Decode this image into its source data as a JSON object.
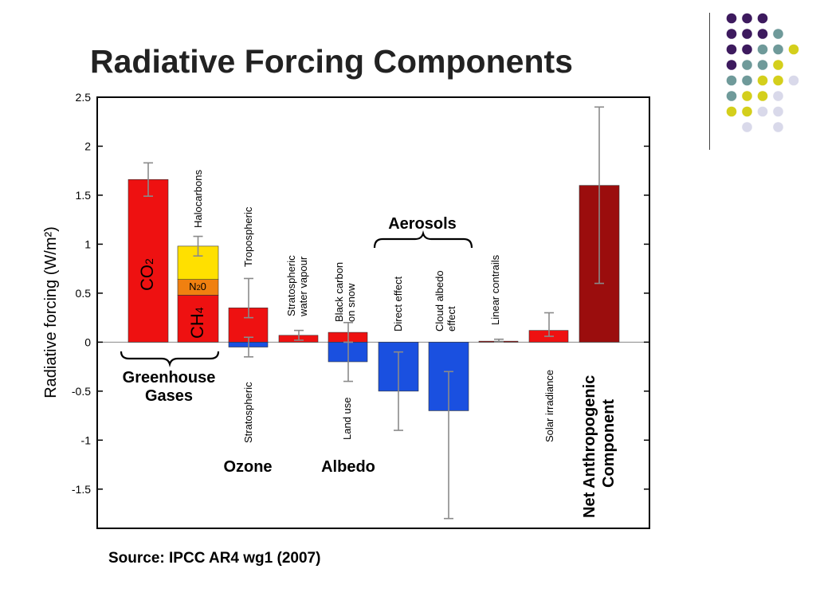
{
  "slide": {
    "title": "Radiative Forcing Components",
    "source": "Source: IPCC AR4 wg1 (2007)"
  },
  "decoration": {
    "dot_colors": {
      "purple": "#3d1a5e",
      "teal": "#6f9a9a",
      "yellow": "#d4cf1c",
      "lavender": "#d9d9ea"
    }
  },
  "chart_data": {
    "type": "bar",
    "ylabel": "Radiative forcing (W/m²)",
    "ylim": [
      -1.9,
      2.5
    ],
    "yticks": [
      "2.5",
      "2",
      "1.5",
      "1",
      "0.5",
      "0",
      "-0.5",
      "-1",
      "-1.5"
    ],
    "ytick_values": [
      2.5,
      2,
      1.5,
      1,
      0.5,
      0,
      -0.5,
      -1,
      -1.5
    ],
    "colors": {
      "positive": "#ee1111",
      "negative": "#1a50e0",
      "halocarbons": "#ffe000",
      "n2o": "#f08010",
      "net": "#9b0d0d",
      "errorbar": "#8a8a8a"
    },
    "components": [
      {
        "category": "CO2",
        "label": "CO₂",
        "value": 1.66,
        "err_low": 1.49,
        "err_high": 1.83
      },
      {
        "category": "CH4",
        "label": "CH₄",
        "value": 0.48
      },
      {
        "category": "N2O",
        "label": "N₂O",
        "value": 0.16
      },
      {
        "category": "Halocarbons",
        "label": "Halocarbons",
        "value": 0.34,
        "err_low": 0.88,
        "err_high": 1.08
      },
      {
        "category": "Ozone tropospheric",
        "label": "Tropospheric",
        "value": 0.35,
        "err_low": 0.25,
        "err_high": 0.65
      },
      {
        "category": "Ozone stratospheric",
        "label": "Stratospheric",
        "value": -0.05,
        "err_low": -0.15,
        "err_high": 0.05
      },
      {
        "category": "Stratospheric water vapour",
        "label": "Stratospheric water vapour",
        "value": 0.07,
        "err_low": 0.02,
        "err_high": 0.12
      },
      {
        "category": "Black carbon on snow",
        "label": "Black carbon on snow",
        "value": 0.1,
        "err_low": 0.0,
        "err_high": 0.2
      },
      {
        "category": "Land use",
        "label": "Land use",
        "value": -0.2,
        "err_low": -0.4,
        "err_high": 0.0
      },
      {
        "category": "Aerosol direct effect",
        "label": "Direct effect",
        "value": -0.5,
        "err_low": -0.9,
        "err_high": -0.1
      },
      {
        "category": "Aerosol cloud albedo effect",
        "label": "Cloud albedo effect",
        "value": -0.7,
        "err_low": -1.8,
        "err_high": -0.3
      },
      {
        "category": "Linear contrails",
        "label": "Linear contrails",
        "value": 0.01,
        "err_low": 0.003,
        "err_high": 0.03
      },
      {
        "category": "Solar irradiance",
        "label": "Solar irradiance",
        "value": 0.12,
        "err_low": 0.06,
        "err_high": 0.3
      },
      {
        "category": "Net anthropogenic",
        "label": "Net Anthropogenic Component",
        "value": 1.6,
        "err_low": 0.6,
        "err_high": 2.4
      }
    ],
    "group_labels": {
      "greenhouse_1": "Greenhouse",
      "greenhouse_2": "Gases",
      "ozone": "Ozone",
      "albedo": "Albedo",
      "aerosols": "Aerosols",
      "net_1": "Net Anthropogenic",
      "net_2": "Component"
    },
    "bar_labels": {
      "co2_main": "CO",
      "co2_sub": "2",
      "ch4_main": "CH",
      "ch4_sub": "4",
      "n2o_main": "N",
      "n2o_sub": "2",
      "n2o_tail": "0",
      "halocarbons": "Halocarbons",
      "tropospheric": "Tropospheric",
      "stratospheric": "Stratospheric",
      "water_vapour_1": "Stratospheric",
      "water_vapour_2": "water vapour",
      "black_carbon_1": "Black carbon",
      "black_carbon_2": "on snow",
      "land_use": "Land use",
      "direct_effect": "Direct effect",
      "cloud_albedo_1": "Cloud albedo",
      "cloud_albedo_2": "effect",
      "linear_contrails": "Linear contrails",
      "solar_irradiance": "Solar irradiance"
    }
  }
}
